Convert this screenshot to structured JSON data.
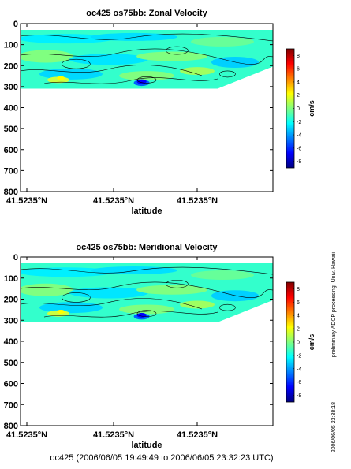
{
  "chart_data": [
    {
      "type": "heatmap",
      "title": "oc425 os75bb: Zonal Velocity",
      "xlabel": "latitude",
      "x_tick_labels": [
        "41.5235°N",
        "41.5235°N",
        "41.5235°N"
      ],
      "ylim": [
        800,
        0
      ],
      "y_ticks": [
        0,
        100,
        200,
        300,
        400,
        500,
        600,
        700,
        800
      ],
      "colorbar": {
        "label": "cm/s",
        "range": [
          -9,
          9
        ],
        "ticks": [
          8,
          6,
          4,
          2,
          0,
          -2,
          -4,
          -6,
          -8
        ]
      },
      "data_depth_range": [
        30,
        310
      ],
      "dominant_value": 0,
      "grid": false
    },
    {
      "type": "heatmap",
      "title": "oc425 os75bb: Meridional Velocity",
      "xlabel": "latitude",
      "x_tick_labels": [
        "41.5235°N",
        "41.5235°N",
        "41.5235°N"
      ],
      "ylim": [
        800,
        0
      ],
      "y_ticks": [
        0,
        100,
        200,
        300,
        400,
        500,
        600,
        700,
        800
      ],
      "colorbar": {
        "label": "cm/s",
        "range": [
          -9,
          9
        ],
        "ticks": [
          8,
          6,
          4,
          2,
          0,
          -2,
          -4,
          -6,
          -8
        ]
      },
      "data_depth_range": [
        30,
        310
      ],
      "dominant_value": 0,
      "grid": false
    }
  ],
  "side_text_1": "preliminary ADCP processing,  Univ. Hawaii",
  "side_text_2": "2006/06/05 23:38:18",
  "footer": "oc425 (2006/06/05 19:49:49 to 2006/06/05 23:32:23 UTC)",
  "colors": {
    "colormap": [
      "#000080",
      "#0000ff",
      "#0080ff",
      "#00ffff",
      "#80ff80",
      "#ffff00",
      "#ff8000",
      "#ff0000",
      "#800000"
    ],
    "background_field": "#33ffcc"
  }
}
